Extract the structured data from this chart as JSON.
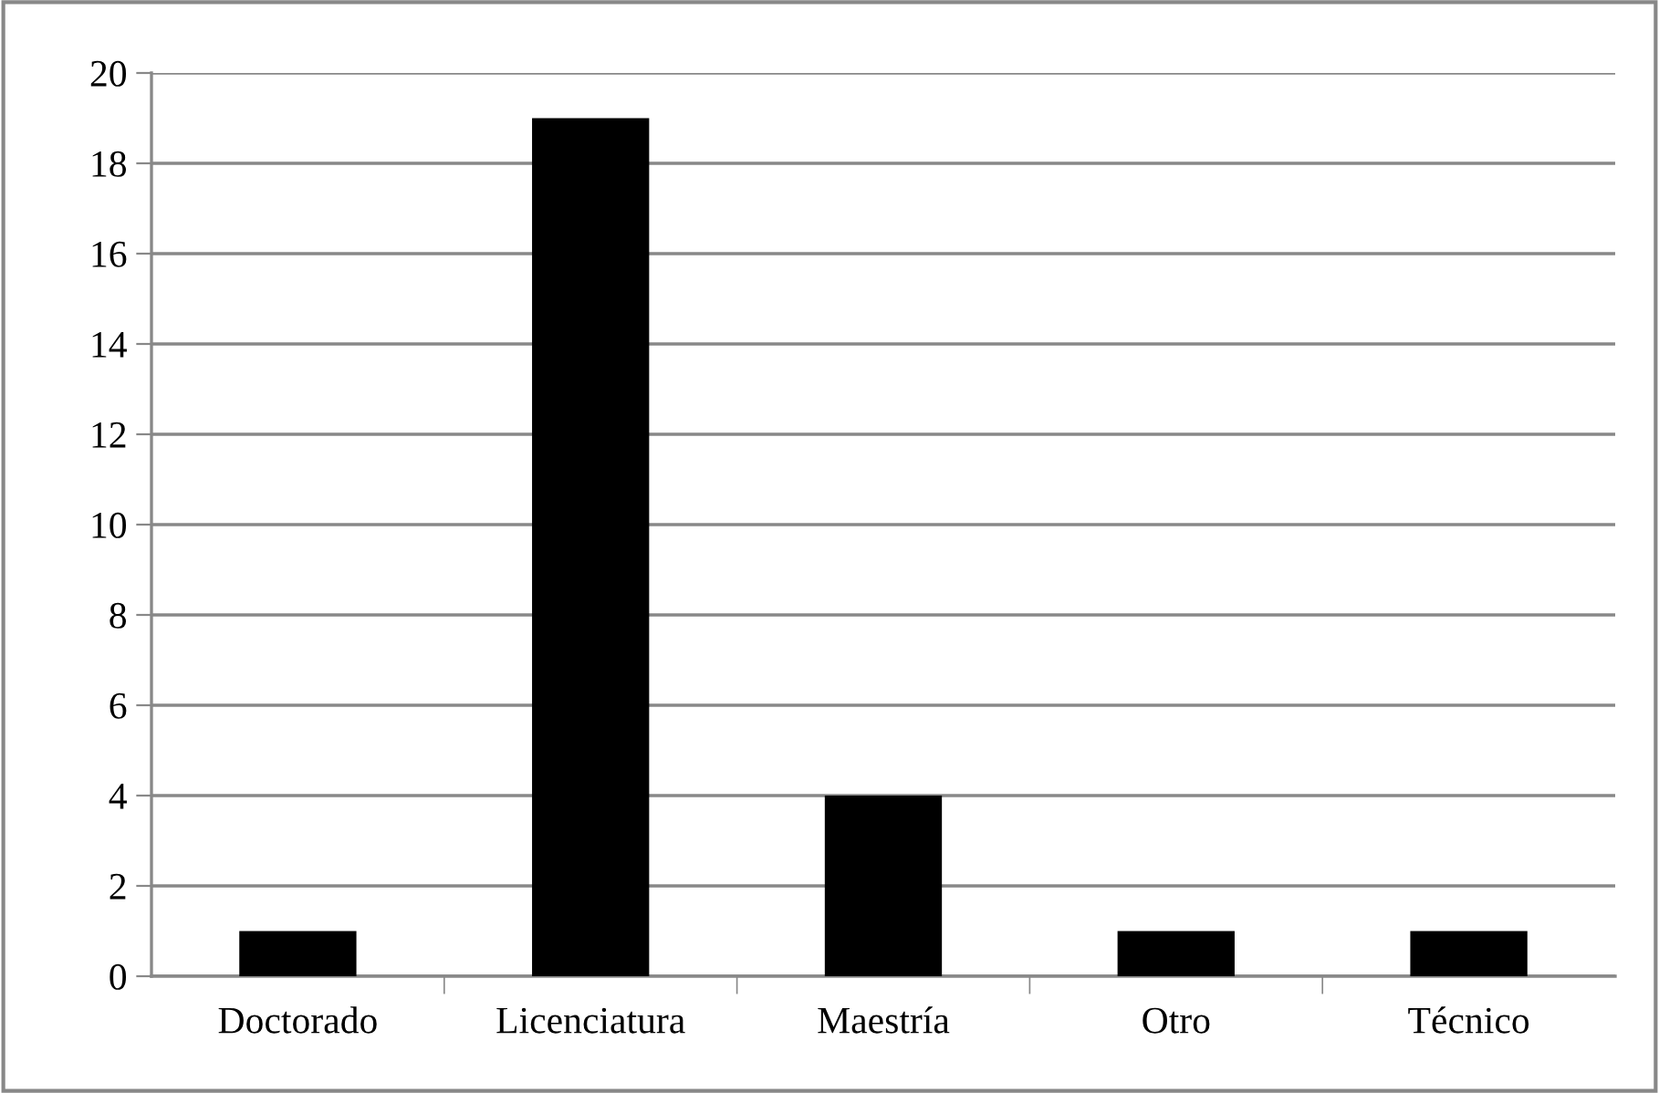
{
  "chart_data": {
    "type": "bar",
    "categories": [
      "Doctorado",
      "Licenciatura",
      "Maestría",
      "Otro",
      "Técnico"
    ],
    "values": [
      1,
      19,
      4,
      1,
      1
    ],
    "color": "#000000",
    "ylim": [
      0,
      20
    ],
    "yticks": [
      0,
      2,
      4,
      6,
      8,
      10,
      12,
      14,
      16,
      18,
      20
    ],
    "grid": "y",
    "legend": false
  }
}
